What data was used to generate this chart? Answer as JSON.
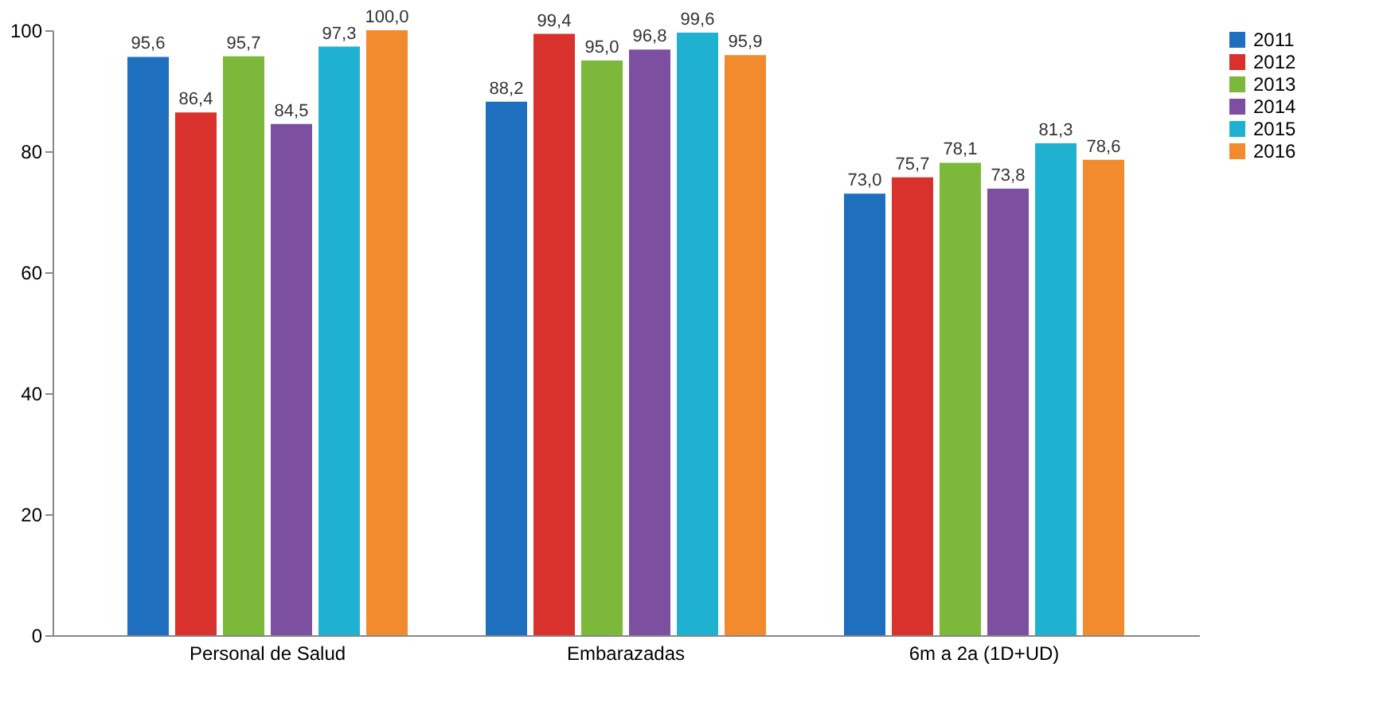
{
  "chart_data": {
    "type": "bar",
    "categories": [
      "Personal de Salud",
      "Embarazadas",
      "6m a 2a (1D+UD)"
    ],
    "series": [
      {
        "name": "2011",
        "color": "#1f6fbf",
        "values": [
          95.6,
          88.2,
          73.0
        ],
        "value_labels": [
          "95,6",
          "88,2",
          "73,0"
        ]
      },
      {
        "name": "2012",
        "color": "#d9312b",
        "values": [
          86.4,
          99.4,
          75.7
        ],
        "value_labels": [
          "86,4",
          "99,4",
          "75,7"
        ]
      },
      {
        "name": "2013",
        "color": "#7cb83a",
        "values": [
          95.7,
          95.0,
          78.1
        ],
        "value_labels": [
          "95,7",
          "95,0",
          "78,1"
        ]
      },
      {
        "name": "2014",
        "color": "#7d4fa1",
        "values": [
          84.5,
          96.8,
          73.8
        ],
        "value_labels": [
          "84,5",
          "96,8",
          "73,8"
        ]
      },
      {
        "name": "2015",
        "color": "#1fb2d0",
        "values": [
          97.3,
          99.6,
          81.3
        ],
        "value_labels": [
          "97,3",
          "99,6",
          "81,3"
        ]
      },
      {
        "name": "2016",
        "color": "#f28a2e",
        "values": [
          100.0,
          95.9,
          78.6
        ],
        "value_labels": [
          "100,0",
          "95,9",
          "78,6"
        ]
      }
    ],
    "ylim": [
      0,
      100
    ],
    "yticks": [
      0,
      20,
      40,
      60,
      80,
      100
    ],
    "grid": false,
    "legend": "right"
  }
}
